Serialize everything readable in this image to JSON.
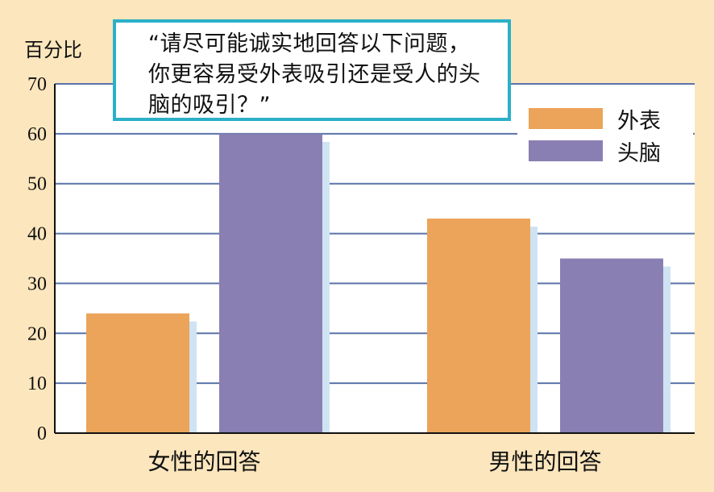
{
  "chart_data": {
    "type": "bar",
    "ylabel": "百分比",
    "ylim": [
      0,
      70
    ],
    "yticks": [
      0,
      10,
      20,
      30,
      40,
      50,
      60,
      70
    ],
    "categories": [
      "女性的回答",
      "男性的回答"
    ],
    "series": [
      {
        "name": "外表",
        "values": [
          24,
          43
        ],
        "color": "#eca45a"
      },
      {
        "name": "头脑",
        "values": [
          60,
          35
        ],
        "color": "#8a7fb2"
      }
    ],
    "grid": true,
    "legend_position": "top-right",
    "annotation": "“请尽可能诚实地回答以下问题，你更容易受外表吸引还是受人的头脑的吸引？”"
  },
  "colors": {
    "background": "#fce6bd",
    "plot_background": "#ffffff",
    "gridline": "#5a73a8",
    "bar_shadow": "#cfe3f3",
    "callout_border": "#2bb0c7"
  }
}
